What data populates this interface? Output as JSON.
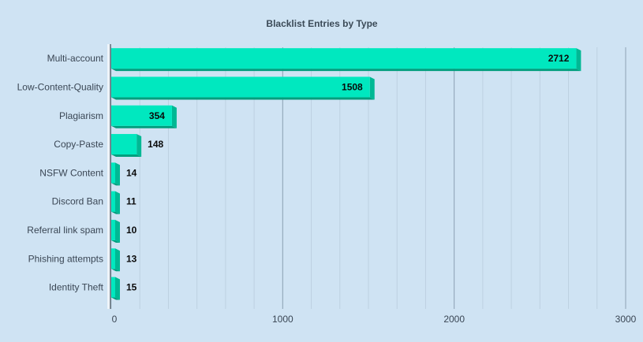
{
  "chart_data": {
    "type": "bar",
    "orientation": "horizontal",
    "title": "Blacklist Entries by Type",
    "xlabel": "",
    "ylabel": "",
    "categories": [
      "Multi-account",
      "Low-Content-Quality",
      "Plagiarism",
      "Copy-Paste",
      "NSFW Content",
      "Discord Ban",
      "Referral link spam",
      "Phishing attempts",
      "Identity Theft"
    ],
    "values": [
      2712,
      1508,
      354,
      148,
      14,
      11,
      10,
      13,
      15
    ],
    "xlim": [
      0,
      3000
    ],
    "xticks": [
      0,
      1000,
      2000,
      3000
    ],
    "grid": true,
    "legend": "none",
    "colors": {
      "bar_face": "#00e8bf",
      "bar_side": "#00b894",
      "bar_bottom": "#009e7d",
      "background": "#cfe3f3",
      "grid_major": "#8fa3b6",
      "grid_minor": "#bdd0e1"
    }
  }
}
